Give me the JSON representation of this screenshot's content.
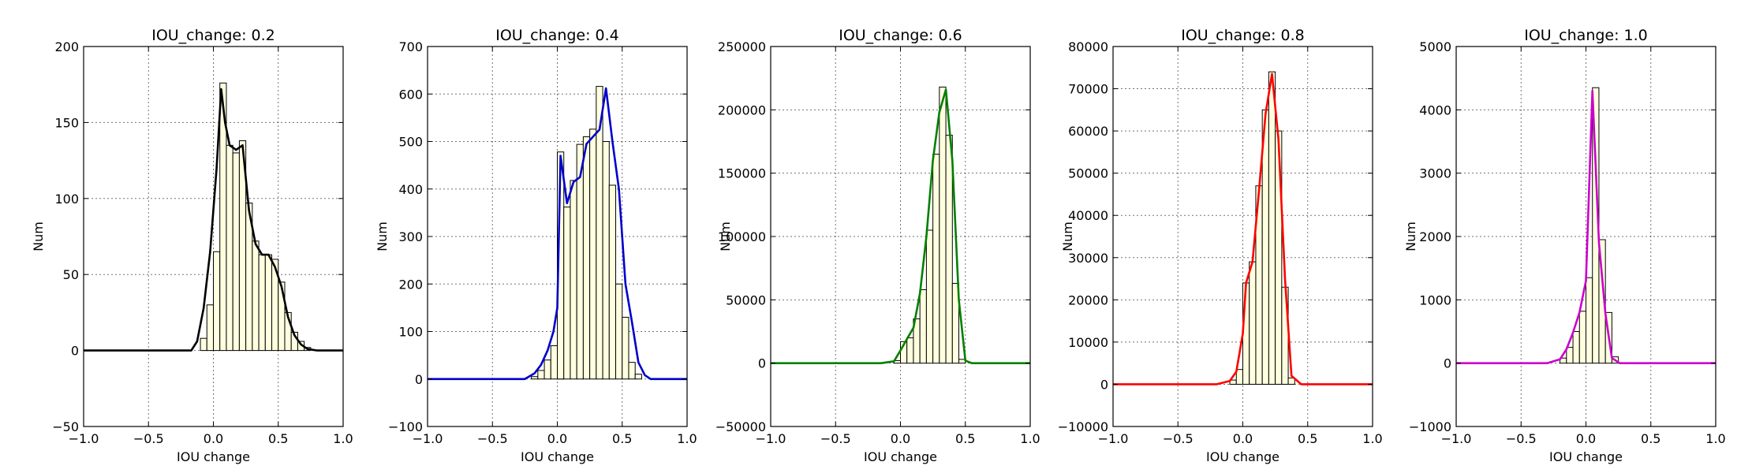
{
  "chart_data": [
    {
      "type": "bar",
      "title": "IOU_change: 0.2",
      "xlabel": "IOU change",
      "ylabel": "Num",
      "xlim": [
        -1.0,
        1.0
      ],
      "ylim": [
        -50,
        200
      ],
      "xticks": [
        "−1.0",
        "−0.5",
        "0.0",
        "0.5",
        "1.0"
      ],
      "yticks": [
        "−50",
        "0",
        "50",
        "100",
        "150",
        "200"
      ],
      "grid": true,
      "line_color": "#000000",
      "bar_color": "#ffffe0",
      "bin_width": 0.05,
      "bins": [
        {
          "x": -0.15,
          "count": 0
        },
        {
          "x": -0.1,
          "count": 8
        },
        {
          "x": -0.05,
          "count": 30
        },
        {
          "x": 0.0,
          "count": 65
        },
        {
          "x": 0.05,
          "count": 176
        },
        {
          "x": 0.1,
          "count": 135
        },
        {
          "x": 0.15,
          "count": 130
        },
        {
          "x": 0.2,
          "count": 138
        },
        {
          "x": 0.25,
          "count": 97
        },
        {
          "x": 0.3,
          "count": 72
        },
        {
          "x": 0.35,
          "count": 63
        },
        {
          "x": 0.4,
          "count": 63
        },
        {
          "x": 0.45,
          "count": 60
        },
        {
          "x": 0.5,
          "count": 45
        },
        {
          "x": 0.55,
          "count": 25
        },
        {
          "x": 0.6,
          "count": 12
        },
        {
          "x": 0.65,
          "count": 6
        },
        {
          "x": 0.7,
          "count": 2
        }
      ],
      "curve": [
        {
          "x": -1.0,
          "y": 0
        },
        {
          "x": -0.17,
          "y": 0
        },
        {
          "x": -0.125,
          "y": 6
        },
        {
          "x": -0.075,
          "y": 28
        },
        {
          "x": -0.025,
          "y": 65
        },
        {
          "x": 0.025,
          "y": 120
        },
        {
          "x": 0.06,
          "y": 172
        },
        {
          "x": 0.09,
          "y": 150
        },
        {
          "x": 0.125,
          "y": 135
        },
        {
          "x": 0.175,
          "y": 132
        },
        {
          "x": 0.225,
          "y": 135
        },
        {
          "x": 0.275,
          "y": 92
        },
        {
          "x": 0.325,
          "y": 70
        },
        {
          "x": 0.375,
          "y": 63
        },
        {
          "x": 0.425,
          "y": 63
        },
        {
          "x": 0.475,
          "y": 55
        },
        {
          "x": 0.525,
          "y": 42
        },
        {
          "x": 0.575,
          "y": 22
        },
        {
          "x": 0.625,
          "y": 10
        },
        {
          "x": 0.675,
          "y": 4
        },
        {
          "x": 0.725,
          "y": 1
        },
        {
          "x": 0.8,
          "y": 0
        },
        {
          "x": 1.0,
          "y": 0
        }
      ]
    },
    {
      "type": "bar",
      "title": "IOU_change: 0.4",
      "xlabel": "IOU change",
      "ylabel": "Num",
      "xlim": [
        -1.0,
        1.0
      ],
      "ylim": [
        -100,
        700
      ],
      "xticks": [
        "−1.0",
        "−0.5",
        "0.0",
        "0.5",
        "1.0"
      ],
      "yticks": [
        "−100",
        "0",
        "100",
        "200",
        "300",
        "400",
        "500",
        "600",
        "700"
      ],
      "grid": true,
      "line_color": "#0000cc",
      "bar_color": "#ffffe0",
      "bin_width": 0.05,
      "bins": [
        {
          "x": -0.2,
          "count": 5
        },
        {
          "x": -0.15,
          "count": 18
        },
        {
          "x": -0.1,
          "count": 40
        },
        {
          "x": -0.05,
          "count": 70
        },
        {
          "x": -0.0,
          "count": 118
        },
        {
          "x": 0.0,
          "count": 478
        },
        {
          "x": 0.05,
          "count": 362
        },
        {
          "x": 0.1,
          "count": 418
        },
        {
          "x": 0.15,
          "count": 494
        },
        {
          "x": 0.2,
          "count": 510
        },
        {
          "x": 0.25,
          "count": 526
        },
        {
          "x": 0.3,
          "count": 616
        },
        {
          "x": 0.35,
          "count": 500
        },
        {
          "x": 0.4,
          "count": 408
        },
        {
          "x": 0.45,
          "count": 200
        },
        {
          "x": 0.5,
          "count": 130
        },
        {
          "x": 0.55,
          "count": 35
        },
        {
          "x": 0.6,
          "count": 10
        }
      ],
      "curve": [
        {
          "x": -1.0,
          "y": 0
        },
        {
          "x": -0.25,
          "y": 0
        },
        {
          "x": -0.175,
          "y": 12
        },
        {
          "x": -0.125,
          "y": 30
        },
        {
          "x": -0.075,
          "y": 60
        },
        {
          "x": -0.03,
          "y": 100
        },
        {
          "x": 0.0,
          "y": 150
        },
        {
          "x": 0.025,
          "y": 470
        },
        {
          "x": 0.075,
          "y": 370
        },
        {
          "x": 0.125,
          "y": 415
        },
        {
          "x": 0.175,
          "y": 425
        },
        {
          "x": 0.225,
          "y": 495
        },
        {
          "x": 0.275,
          "y": 510
        },
        {
          "x": 0.325,
          "y": 525
        },
        {
          "x": 0.375,
          "y": 612
        },
        {
          "x": 0.425,
          "y": 500
        },
        {
          "x": 0.475,
          "y": 400
        },
        {
          "x": 0.525,
          "y": 200
        },
        {
          "x": 0.575,
          "y": 120
        },
        {
          "x": 0.625,
          "y": 35
        },
        {
          "x": 0.675,
          "y": 8
        },
        {
          "x": 0.72,
          "y": 0
        },
        {
          "x": 1.0,
          "y": 0
        }
      ]
    },
    {
      "type": "bar",
      "title": "IOU_change: 0.6",
      "xlabel": "IOU change",
      "ylabel": "Num",
      "xlim": [
        -1.0,
        1.0
      ],
      "ylim": [
        -50000,
        250000
      ],
      "xticks": [
        "−1.0",
        "−0.5",
        "0.0",
        "0.5",
        "1.0"
      ],
      "yticks": [
        "−50000",
        "0",
        "50000",
        "100000",
        "150000",
        "200000",
        "250000"
      ],
      "grid": true,
      "line_color": "#008000",
      "bar_color": "#ffffe0",
      "bin_width": 0.05,
      "bins": [
        {
          "x": -0.05,
          "count": 2000
        },
        {
          "x": 0.0,
          "count": 17000
        },
        {
          "x": 0.05,
          "count": 20000
        },
        {
          "x": 0.1,
          "count": 35000
        },
        {
          "x": 0.15,
          "count": 58000
        },
        {
          "x": 0.2,
          "count": 105000
        },
        {
          "x": 0.25,
          "count": 165000
        },
        {
          "x": 0.3,
          "count": 218000
        },
        {
          "x": 0.35,
          "count": 180000
        },
        {
          "x": 0.4,
          "count": 63000
        },
        {
          "x": 0.45,
          "count": 3000
        }
      ],
      "curve": [
        {
          "x": -1.0,
          "y": 0
        },
        {
          "x": -0.15,
          "y": 0
        },
        {
          "x": -0.05,
          "y": 1500
        },
        {
          "x": 0.0,
          "y": 10000
        },
        {
          "x": 0.05,
          "y": 19000
        },
        {
          "x": 0.1,
          "y": 28000
        },
        {
          "x": 0.15,
          "y": 55000
        },
        {
          "x": 0.2,
          "y": 100000
        },
        {
          "x": 0.25,
          "y": 160000
        },
        {
          "x": 0.3,
          "y": 198000
        },
        {
          "x": 0.35,
          "y": 216000
        },
        {
          "x": 0.4,
          "y": 160000
        },
        {
          "x": 0.45,
          "y": 50000
        },
        {
          "x": 0.5,
          "y": 2000
        },
        {
          "x": 0.55,
          "y": 0
        },
        {
          "x": 1.0,
          "y": 0
        }
      ]
    },
    {
      "type": "bar",
      "title": "IOU_change: 0.8",
      "xlabel": "IOU change",
      "ylabel": "Num",
      "xlim": [
        -1.0,
        1.0
      ],
      "ylim": [
        -10000,
        80000
      ],
      "xticks": [
        "−1.0",
        "−0.5",
        "0.0",
        "0.5",
        "1.0"
      ],
      "yticks": [
        "−10000",
        "0",
        "10000",
        "20000",
        "30000",
        "40000",
        "50000",
        "60000",
        "70000",
        "80000"
      ],
      "grid": true,
      "line_color": "#ff0000",
      "bar_color": "#ffffe0",
      "bin_width": 0.05,
      "bins": [
        {
          "x": -0.1,
          "count": 1000
        },
        {
          "x": -0.05,
          "count": 3500
        },
        {
          "x": 0.0,
          "count": 24000
        },
        {
          "x": 0.05,
          "count": 29000
        },
        {
          "x": 0.1,
          "count": 47000
        },
        {
          "x": 0.15,
          "count": 65000
        },
        {
          "x": 0.2,
          "count": 74000
        },
        {
          "x": 0.25,
          "count": 60000
        },
        {
          "x": 0.3,
          "count": 23000
        },
        {
          "x": 0.35,
          "count": 1500
        }
      ],
      "curve": [
        {
          "x": -1.0,
          "y": 0
        },
        {
          "x": -0.2,
          "y": 0
        },
        {
          "x": -0.1,
          "y": 800
        },
        {
          "x": -0.05,
          "y": 3000
        },
        {
          "x": 0.0,
          "y": 12000
        },
        {
          "x": 0.025,
          "y": 24000
        },
        {
          "x": 0.075,
          "y": 29000
        },
        {
          "x": 0.125,
          "y": 46000
        },
        {
          "x": 0.175,
          "y": 64000
        },
        {
          "x": 0.225,
          "y": 73500
        },
        {
          "x": 0.275,
          "y": 58000
        },
        {
          "x": 0.325,
          "y": 25000
        },
        {
          "x": 0.375,
          "y": 2000
        },
        {
          "x": 0.45,
          "y": 0
        },
        {
          "x": 1.0,
          "y": 0
        }
      ]
    },
    {
      "type": "bar",
      "title": "IOU_change: 1.0",
      "xlabel": "IOU change",
      "ylabel": "Num",
      "xlim": [
        -1.0,
        1.0
      ],
      "ylim": [
        -1000,
        5000
      ],
      "xticks": [
        "−1.0",
        "−0.5",
        "0.0",
        "0.5",
        "1.0"
      ],
      "yticks": [
        "−1000",
        "0",
        "1000",
        "2000",
        "3000",
        "4000",
        "5000"
      ],
      "grid": true,
      "line_color": "#cc00cc",
      "bar_color": "#ffffe0",
      "bin_width": 0.05,
      "bins": [
        {
          "x": -0.2,
          "count": 80
        },
        {
          "x": -0.15,
          "count": 250
        },
        {
          "x": -0.1,
          "count": 500
        },
        {
          "x": -0.05,
          "count": 820
        },
        {
          "x": 0.0,
          "count": 1350
        },
        {
          "x": 0.05,
          "count": 4350
        },
        {
          "x": 0.1,
          "count": 1950
        },
        {
          "x": 0.15,
          "count": 800
        },
        {
          "x": 0.2,
          "count": 100
        }
      ],
      "curve": [
        {
          "x": -1.0,
          "y": 0
        },
        {
          "x": -0.3,
          "y": 0
        },
        {
          "x": -0.2,
          "y": 60
        },
        {
          "x": -0.15,
          "y": 220
        },
        {
          "x": -0.1,
          "y": 480
        },
        {
          "x": -0.05,
          "y": 800
        },
        {
          "x": 0.0,
          "y": 1300
        },
        {
          "x": 0.05,
          "y": 4300
        },
        {
          "x": 0.1,
          "y": 1900
        },
        {
          "x": 0.15,
          "y": 780
        },
        {
          "x": 0.2,
          "y": 80
        },
        {
          "x": 0.26,
          "y": 0
        },
        {
          "x": 1.0,
          "y": 0
        }
      ]
    }
  ]
}
